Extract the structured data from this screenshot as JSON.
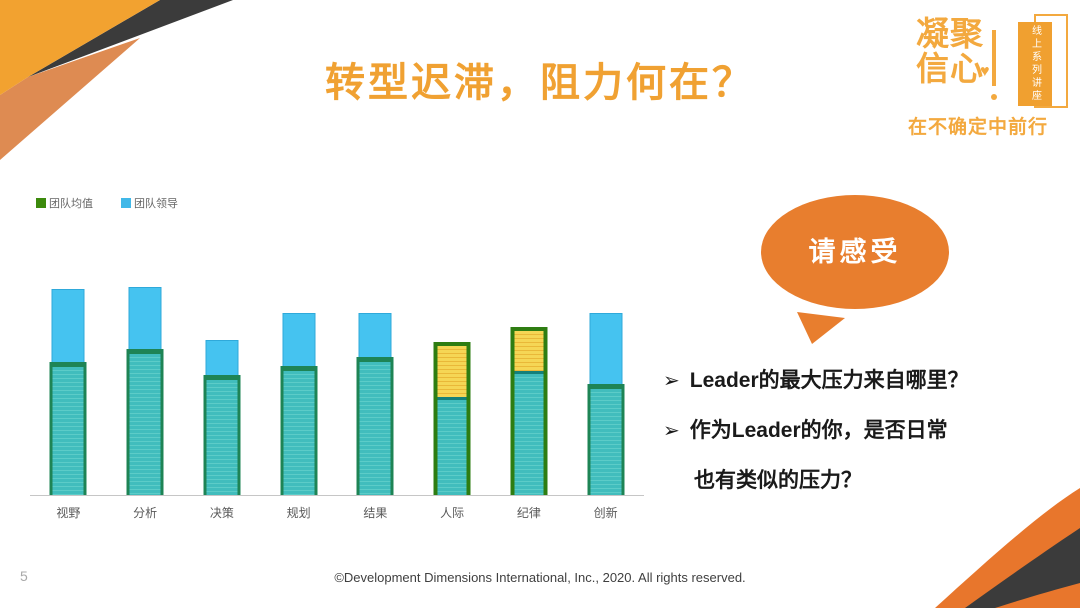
{
  "slide": {
    "title": "转型迟滞，阻力何在？",
    "page_number": "5",
    "footer": "©Development Dimensions International, Inc., 2020. All rights reserved."
  },
  "logo": {
    "line1": "凝聚",
    "line2": "信心",
    "heart": "♥",
    "banner_vertical_text": "线上系列讲座",
    "tagline": "在不确定中前行"
  },
  "bubble": {
    "text": "请感受",
    "color": "#E87E2E"
  },
  "bullets": {
    "marker": "➢",
    "items": [
      {
        "lines": [
          "Leader的最大压力来自哪里？"
        ]
      },
      {
        "lines": [
          "作为Leader的你，是否日常",
          "也有类似的压力？"
        ]
      }
    ]
  },
  "chart_data": {
    "type": "bar",
    "title": "",
    "xlabel": "",
    "ylabel": "",
    "categories": [
      "视野",
      "分析",
      "决策",
      "规划",
      "结果",
      "人际",
      "纪律",
      "创新"
    ],
    "series": [
      {
        "name": "团队均值",
        "color": "#3C8A0C",
        "values": [
          61,
          67,
          55,
          59,
          63,
          70,
          77,
          51
        ]
      },
      {
        "name": "团队领导",
        "color": "#41B8E8",
        "values": [
          94,
          95,
          71,
          83,
          83,
          47,
          59,
          83
        ]
      }
    ],
    "ylim": [
      0,
      100
    ],
    "grid": false,
    "legend_position": "top-left",
    "note_highlight": "人际 and 纪律 bars show yellow hatched gap where 团队领导 value is below 团队均值"
  },
  "colors": {
    "title": "#F0A132",
    "corner_orange": "#F2A230",
    "corner_dark": "#3B3B3B",
    "corner_light_orange": "#DE8B52",
    "bar_leader_fill": "#45C3F0",
    "bar_average_border": "#1E8455",
    "bar_gap_border": "#2E7D12",
    "bar_teal_fill": "#41BDBD",
    "bar_gap_yellow": "#F5D655",
    "logo_orange": "#F3A93F"
  }
}
